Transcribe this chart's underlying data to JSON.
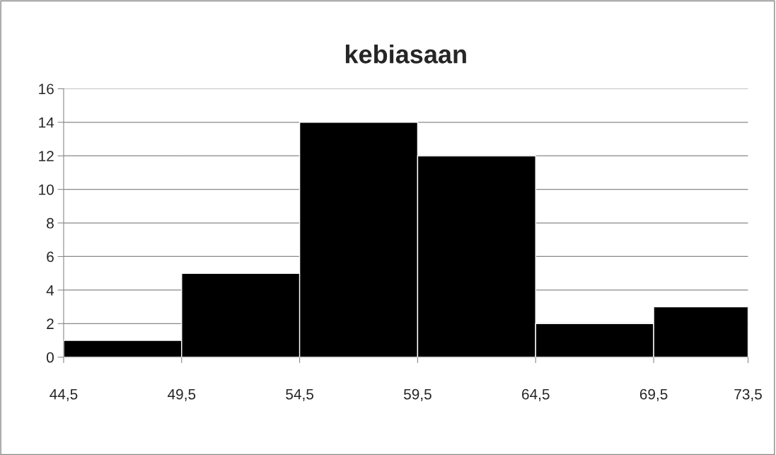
{
  "chart_data": {
    "type": "histogram",
    "title": "kebiasaan",
    "bins": [
      44.5,
      49.5,
      54.5,
      59.5,
      64.5,
      69.5,
      73.5
    ],
    "values": [
      1,
      5,
      14,
      12,
      2,
      3
    ],
    "color": "#000000",
    "xlim": [
      44.5,
      73.5
    ],
    "xticks": [
      {
        "value": 44.5,
        "label": "44,5"
      },
      {
        "value": 49.5,
        "label": "49,5"
      },
      {
        "value": 54.5,
        "label": "54,5"
      },
      {
        "value": 59.5,
        "label": "59,5"
      },
      {
        "value": 64.5,
        "label": "64,5"
      },
      {
        "value": 69.5,
        "label": "69,5"
      },
      {
        "value": 73.5,
        "label": "73,5"
      }
    ],
    "ylim": [
      0,
      16
    ],
    "yticks": [
      0,
      2,
      4,
      6,
      8,
      10,
      12,
      14,
      16
    ],
    "grid": "y"
  }
}
